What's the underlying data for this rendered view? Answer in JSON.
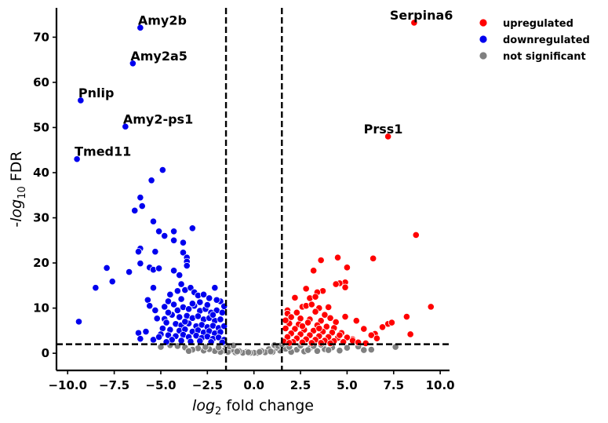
{
  "chart_data": {
    "type": "scatter",
    "title": "",
    "xlabel": "log2 fold change",
    "ylabel": "-log10 FDR",
    "xlim": [
      -10.6,
      10.5
    ],
    "ylim": [
      -3.8,
      76.5
    ],
    "xticks": [
      -10.0,
      -7.5,
      -5.0,
      -2.5,
      0.0,
      2.5,
      5.0,
      7.5,
      10.0
    ],
    "xtick_labels": [
      "−10.0",
      "−7.5",
      "−5.0",
      "−2.5",
      "0.0",
      "2.5",
      "5.0",
      "7.5",
      "10.0"
    ],
    "yticks": [
      0,
      10,
      20,
      30,
      40,
      50,
      60,
      70
    ],
    "ytick_labels": [
      "0",
      "10",
      "20",
      "30",
      "40",
      "50",
      "60",
      "70"
    ],
    "thresholds": {
      "fold_change": [
        -1.5,
        1.5
      ],
      "fdr": 2
    },
    "legend": {
      "placement": "outside-right"
    },
    "series": [
      {
        "name": "upregulated",
        "color": "#ff0000",
        "points": [
          [
            8.6,
            73.2
          ],
          [
            7.2,
            48.0
          ],
          [
            8.7,
            26.2
          ],
          [
            9.5,
            10.3
          ],
          [
            8.2,
            8.1
          ],
          [
            8.4,
            4.2
          ],
          [
            6.4,
            21.0
          ],
          [
            7.2,
            6.5
          ],
          [
            7.4,
            6.8
          ],
          [
            6.9,
            5.8
          ],
          [
            6.5,
            4.3
          ],
          [
            6.3,
            4.0
          ],
          [
            6.6,
            3.3
          ],
          [
            5.9,
            5.4
          ],
          [
            5.5,
            7.2
          ],
          [
            5.3,
            3.1
          ],
          [
            5.0,
            19.0
          ],
          [
            4.5,
            21.2
          ],
          [
            4.9,
            15.7
          ],
          [
            4.9,
            14.6
          ],
          [
            4.6,
            15.5
          ],
          [
            4.4,
            15.3
          ],
          [
            4.9,
            8.1
          ],
          [
            3.6,
            20.6
          ],
          [
            3.2,
            18.3
          ],
          [
            3.7,
            13.8
          ],
          [
            3.4,
            13.5
          ],
          [
            2.8,
            14.3
          ],
          [
            2.2,
            12.3
          ],
          [
            3.0,
            12.2
          ],
          [
            3.3,
            12.5
          ],
          [
            2.6,
            10.3
          ],
          [
            2.8,
            10.5
          ],
          [
            3.1,
            10.8
          ],
          [
            3.5,
            10.0
          ],
          [
            4.0,
            10.2
          ],
          [
            1.8,
            9.5
          ],
          [
            1.8,
            8.8
          ],
          [
            2.3,
            9.0
          ],
          [
            3.3,
            9.2
          ],
          [
            3.8,
            8.5
          ],
          [
            2.0,
            8.0
          ],
          [
            2.5,
            7.7
          ],
          [
            3.0,
            7.5
          ],
          [
            3.6,
            7.2
          ],
          [
            4.1,
            7.8
          ],
          [
            4.4,
            6.9
          ],
          [
            1.9,
            6.6
          ],
          [
            2.4,
            6.4
          ],
          [
            2.9,
            6.8
          ],
          [
            3.4,
            6.2
          ],
          [
            3.9,
            5.9
          ],
          [
            4.3,
            5.6
          ],
          [
            1.7,
            5.5
          ],
          [
            2.2,
            5.4
          ],
          [
            2.7,
            5.2
          ],
          [
            3.2,
            5.0
          ],
          [
            3.7,
            4.8
          ],
          [
            4.2,
            4.6
          ],
          [
            4.7,
            4.5
          ],
          [
            2.0,
            4.4
          ],
          [
            2.5,
            4.2
          ],
          [
            3.0,
            4.0
          ],
          [
            3.5,
            3.8
          ],
          [
            4.0,
            3.6
          ],
          [
            4.5,
            3.4
          ],
          [
            5.0,
            3.5
          ],
          [
            1.8,
            3.6
          ],
          [
            2.3,
            3.3
          ],
          [
            2.8,
            3.1
          ],
          [
            3.3,
            3.0
          ],
          [
            3.8,
            2.8
          ],
          [
            4.3,
            2.7
          ],
          [
            4.8,
            2.5
          ],
          [
            5.3,
            2.8
          ],
          [
            1.6,
            2.6
          ],
          [
            2.1,
            2.5
          ],
          [
            2.6,
            2.4
          ],
          [
            3.1,
            2.3
          ],
          [
            3.6,
            2.3
          ],
          [
            4.1,
            2.2
          ],
          [
            5.6,
            2.4
          ],
          [
            6.0,
            2.2
          ],
          [
            1.7,
            7.3
          ],
          [
            2.6,
            6.0
          ],
          [
            3.5,
            5.5
          ],
          [
            4.6,
            4.0
          ],
          [
            1.9,
            2.3
          ]
        ]
      },
      {
        "name": "downregulated",
        "color": "#0000ee",
        "points": [
          [
            -6.1,
            72.1
          ],
          [
            -6.5,
            64.2
          ],
          [
            -9.3,
            56.0
          ],
          [
            -6.9,
            50.2
          ],
          [
            -9.5,
            43.0
          ],
          [
            -4.9,
            40.6
          ],
          [
            -5.5,
            38.3
          ],
          [
            -6.1,
            34.5
          ],
          [
            -6.0,
            32.6
          ],
          [
            -6.4,
            31.6
          ],
          [
            -5.4,
            29.2
          ],
          [
            -5.1,
            27.0
          ],
          [
            -4.8,
            26.0
          ],
          [
            -4.3,
            27.0
          ],
          [
            -3.3,
            27.7
          ],
          [
            -4.3,
            25.0
          ],
          [
            -3.8,
            24.5
          ],
          [
            -6.1,
            23.2
          ],
          [
            -6.2,
            22.5
          ],
          [
            -5.3,
            22.5
          ],
          [
            -3.8,
            22.3
          ],
          [
            -3.6,
            21.2
          ],
          [
            -3.6,
            20.3
          ],
          [
            -6.1,
            19.9
          ],
          [
            -5.6,
            19.0
          ],
          [
            -5.4,
            18.5
          ],
          [
            -5.1,
            18.8
          ],
          [
            -4.3,
            18.3
          ],
          [
            -3.6,
            19.4
          ],
          [
            -4.0,
            17.3
          ],
          [
            -7.9,
            18.9
          ],
          [
            -7.6,
            15.9
          ],
          [
            -6.7,
            18.0
          ],
          [
            -8.5,
            14.5
          ],
          [
            -9.4,
            7.0
          ],
          [
            -5.4,
            14.5
          ],
          [
            -5.7,
            11.8
          ],
          [
            -5.6,
            10.5
          ],
          [
            -5.3,
            9.5
          ],
          [
            -5.2,
            7.7
          ],
          [
            -4.8,
            7.6
          ],
          [
            -6.2,
            4.5
          ],
          [
            -5.8,
            4.8
          ],
          [
            -6.1,
            3.2
          ],
          [
            -5.4,
            3.0
          ],
          [
            -4.5,
            13.0
          ],
          [
            -4.6,
            11.5
          ],
          [
            -4.3,
            10.8
          ],
          [
            -3.9,
            15.3
          ],
          [
            -3.7,
            14.0
          ],
          [
            -3.4,
            14.5
          ],
          [
            -3.2,
            13.5
          ],
          [
            -3.0,
            12.8
          ],
          [
            -2.7,
            13.0
          ],
          [
            -2.4,
            12.2
          ],
          [
            -2.1,
            14.5
          ],
          [
            -1.8,
            11.5
          ],
          [
            -4.1,
            9.5
          ],
          [
            -3.8,
            10.2
          ],
          [
            -3.5,
            9.8
          ],
          [
            -3.2,
            10.5
          ],
          [
            -2.9,
            9.4
          ],
          [
            -2.6,
            9.8
          ],
          [
            -2.3,
            9.0
          ],
          [
            -2.0,
            9.5
          ],
          [
            -1.7,
            9.0
          ],
          [
            -4.4,
            8.5
          ],
          [
            -4.0,
            8.0
          ],
          [
            -3.6,
            8.3
          ],
          [
            -3.3,
            7.8
          ],
          [
            -3.0,
            8.2
          ],
          [
            -2.7,
            7.5
          ],
          [
            -2.4,
            7.8
          ],
          [
            -2.1,
            7.2
          ],
          [
            -1.8,
            7.5
          ],
          [
            -4.7,
            6.8
          ],
          [
            -4.2,
            6.5
          ],
          [
            -3.9,
            6.2
          ],
          [
            -3.5,
            6.6
          ],
          [
            -3.1,
            6.0
          ],
          [
            -2.8,
            6.3
          ],
          [
            -2.5,
            5.8
          ],
          [
            -2.2,
            6.1
          ],
          [
            -1.9,
            5.6
          ],
          [
            -1.6,
            6.0
          ],
          [
            -4.9,
            5.5
          ],
          [
            -4.5,
            5.2
          ],
          [
            -4.0,
            5.0
          ],
          [
            -3.7,
            5.3
          ],
          [
            -3.3,
            4.8
          ],
          [
            -3.0,
            5.1
          ],
          [
            -2.7,
            4.6
          ],
          [
            -2.4,
            4.9
          ],
          [
            -2.1,
            4.4
          ],
          [
            -1.8,
            4.7
          ],
          [
            -5.0,
            4.2
          ],
          [
            -4.6,
            4.0
          ],
          [
            -4.2,
            3.8
          ],
          [
            -3.8,
            4.1
          ],
          [
            -3.5,
            3.6
          ],
          [
            -3.1,
            3.9
          ],
          [
            -2.8,
            3.4
          ],
          [
            -2.5,
            3.7
          ],
          [
            -2.2,
            3.2
          ],
          [
            -1.9,
            3.5
          ],
          [
            -1.6,
            3.0
          ],
          [
            -4.4,
            3.0
          ],
          [
            -3.9,
            2.8
          ],
          [
            -3.4,
            2.6
          ],
          [
            -2.9,
            2.7
          ],
          [
            -2.3,
            2.5
          ],
          [
            -1.7,
            2.4
          ],
          [
            -4.7,
            2.5
          ],
          [
            -5.1,
            3.6
          ],
          [
            -4.8,
            10.3
          ],
          [
            -3.9,
            12.0
          ],
          [
            -2.9,
            11.3
          ],
          [
            -2.0,
            11.8
          ],
          [
            -4.1,
            13.8
          ],
          [
            -3.3,
            11.0
          ],
          [
            -2.5,
            10.7
          ],
          [
            -1.6,
            10.4
          ],
          [
            -4.6,
            9.0
          ],
          [
            -3.7,
            7.0
          ],
          [
            -2.2,
            8.5
          ]
        ]
      },
      {
        "name": "not significant",
        "color": "#808080",
        "points": [
          [
            7.6,
            1.4
          ],
          [
            6.3,
            0.8
          ],
          [
            5.6,
            1.5
          ],
          [
            5.0,
            1.2
          ],
          [
            4.6,
            0.6
          ],
          [
            4.2,
            1.3
          ],
          [
            3.8,
            0.9
          ],
          [
            3.4,
            0.5
          ],
          [
            3.0,
            1.1
          ],
          [
            2.7,
            0.4
          ],
          [
            2.3,
            0.8
          ],
          [
            2.0,
            0.3
          ],
          [
            1.7,
            1.0
          ],
          [
            1.4,
            0.6
          ],
          [
            1.2,
            1.2
          ],
          [
            1.0,
            0.3
          ],
          [
            0.8,
            0.9
          ],
          [
            0.6,
            0.2
          ],
          [
            0.4,
            0.5
          ],
          [
            0.2,
            0.1
          ],
          [
            0.0,
            0.1
          ],
          [
            -0.2,
            0.1
          ],
          [
            -0.4,
            0.3
          ],
          [
            -0.6,
            0.1
          ],
          [
            -0.8,
            0.5
          ],
          [
            -1.0,
            0.2
          ],
          [
            -1.2,
            0.8
          ],
          [
            -1.4,
            0.3
          ],
          [
            -1.6,
            0.6
          ],
          [
            -1.8,
            0.3
          ],
          [
            -2.1,
            0.5
          ],
          [
            -2.4,
            0.9
          ],
          [
            -2.7,
            0.6
          ],
          [
            -3.0,
            1.1
          ],
          [
            -3.3,
            0.8
          ],
          [
            -3.7,
            1.3
          ],
          [
            -4.1,
            1.6
          ],
          [
            -4.5,
            1.8
          ],
          [
            -5.0,
            1.4
          ],
          [
            -1.5,
            1.8
          ],
          [
            -1.3,
            1.5
          ],
          [
            -1.1,
            1.7
          ],
          [
            1.1,
            1.8
          ],
          [
            1.3,
            1.6
          ],
          [
            1.5,
            1.9
          ],
          [
            2.5,
            1.7
          ],
          [
            3.2,
            1.6
          ],
          [
            3.6,
            1.9
          ],
          [
            5.9,
            0.7
          ],
          [
            0.3,
            0.3
          ],
          [
            -0.3,
            0.2
          ],
          [
            0.9,
            0.4
          ],
          [
            -0.9,
            0.4
          ],
          [
            1.9,
            1.4
          ],
          [
            -1.9,
            1.3
          ],
          [
            2.9,
            0.7
          ],
          [
            -2.6,
            1.4
          ],
          [
            4.0,
            0.7
          ],
          [
            -3.5,
            0.5
          ]
        ]
      }
    ],
    "annotations": [
      {
        "text": "Amy2b",
        "x": -6.1,
        "y": 72.1
      },
      {
        "text": "Amy2a5",
        "x": -6.5,
        "y": 64.2
      },
      {
        "text": "Pnlip",
        "x": -9.3,
        "y": 56.0
      },
      {
        "text": "Amy2-ps1",
        "x": -6.9,
        "y": 50.2
      },
      {
        "text": "Tmed11",
        "x": -9.5,
        "y": 43.0
      },
      {
        "text": "Serpina6",
        "x": 8.6,
        "y": 73.2
      },
      {
        "text": "Prss1",
        "x": 7.2,
        "y": 48.0
      }
    ]
  }
}
